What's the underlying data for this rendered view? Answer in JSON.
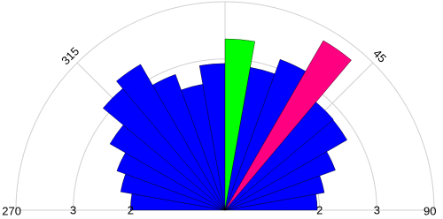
{
  "chart_data": {
    "type": "polar_bar",
    "theta_start": [
      -90,
      -80,
      -70,
      -60,
      -50,
      -40,
      -30,
      -20,
      -10,
      0,
      10,
      20,
      30,
      40,
      50,
      60,
      70,
      80
    ],
    "bin_width": 10,
    "values": [
      2.0,
      2.2,
      2.36,
      2.67,
      3.13,
      3.3,
      2.88,
      2.59,
      2.92,
      3.35,
      2.89,
      3.16,
      3.78,
      2.82,
      2.81,
      2.4,
      2.11,
      1.96
    ],
    "colors": [
      "#0000ff",
      "#0000ff",
      "#0000ff",
      "#0000ff",
      "#0000ff",
      "#0000ff",
      "#0000ff",
      "#0000ff",
      "#0000ff",
      "#00ff00",
      "#0000ff",
      "#0000ff",
      "#ff0080",
      "#0000ff",
      "#0000ff",
      "#0000ff",
      "#0000ff",
      "#0000ff"
    ],
    "rlim": [
      0.35,
      4
    ],
    "rticks": [
      2,
      3
    ],
    "thetalim": [
      -90,
      90
    ],
    "thetaticks": [
      {
        "value": -90,
        "label": "270"
      },
      {
        "value": -45,
        "label": "315"
      },
      0,
      45,
      90
    ]
  }
}
